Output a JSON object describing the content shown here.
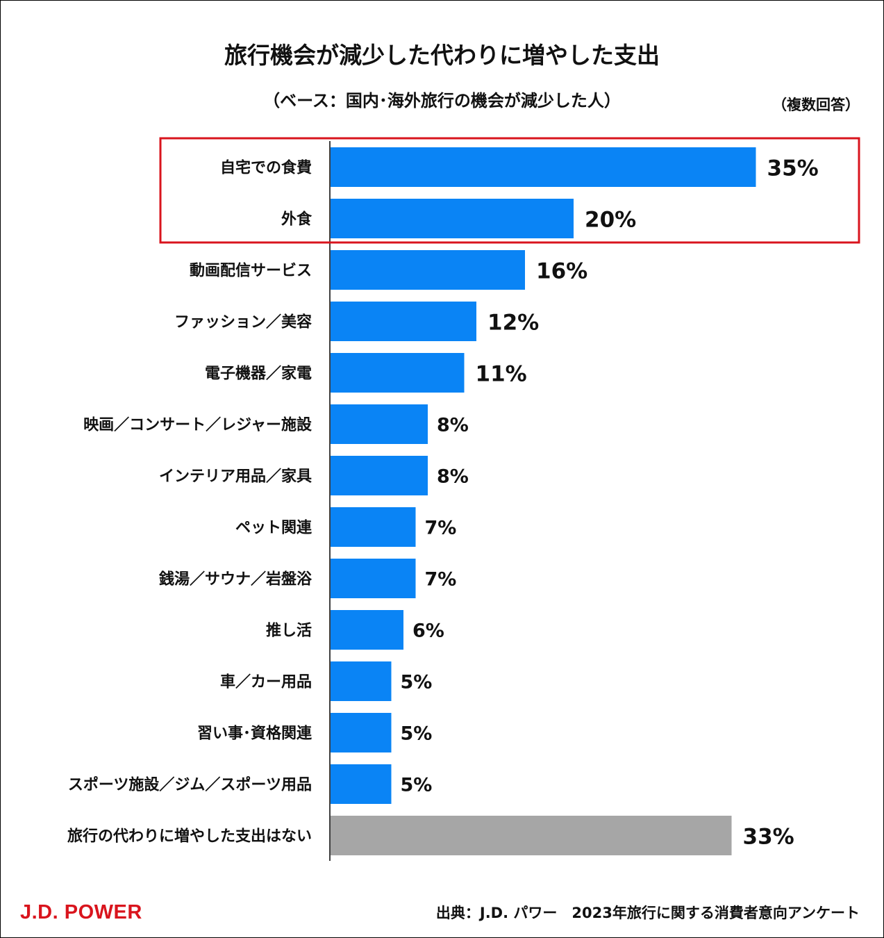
{
  "colors": {
    "bar": "#0a84f5",
    "bar_none": "#a6a6a6",
    "highlight": "#d9141d",
    "logo": "#d9141d",
    "axis": "#000000"
  },
  "header": {
    "title": "旅行機会が減少した代わりに増やした支出",
    "subtitle": "（ベース：国内･海外旅行の機会が減少した人）",
    "note": "（複数回答）"
  },
  "footer": {
    "logo_text": "J.D. POWER",
    "source": "出典：J.D. パワー　2023年旅行に関する消費者意向アンケート"
  },
  "chart_data": {
    "type": "bar",
    "orientation": "horizontal",
    "unit": "%",
    "categories": [
      "自宅での食費",
      "外食",
      "動画配信サービス",
      "ファッション／美容",
      "電子機器／家電",
      "映画／コンサート／レジャー施設",
      "インテリア用品／家具",
      "ペット関連",
      "銭湯／サウナ／岩盤浴",
      "推し活",
      "車／カー用品",
      "習い事･資格関連",
      "スポーツ施設／ジム／スポーツ用品",
      "旅行の代わりに増やした支出はない"
    ],
    "values": [
      35,
      20,
      16,
      12,
      11,
      8,
      8,
      7,
      7,
      6,
      5,
      5,
      5,
      33
    ],
    "value_labels": [
      "35%",
      "20%",
      "16%",
      "12%",
      "11%",
      "8%",
      "8%",
      "7%",
      "7%",
      "6%",
      "5%",
      "5%",
      "5%",
      "33%"
    ],
    "highlighted": [
      0,
      1
    ],
    "gray_bars": [
      13
    ],
    "grid": false,
    "legend": "none"
  }
}
